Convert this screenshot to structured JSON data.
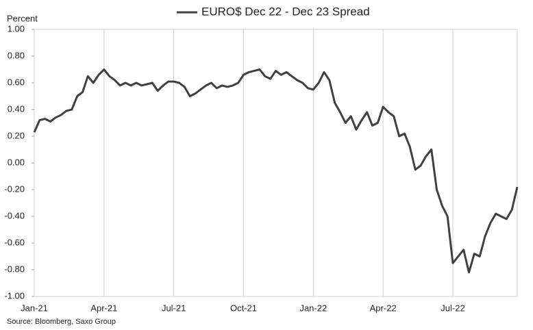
{
  "chart_data": {
    "type": "line",
    "y_label": "Percent",
    "source": "Source: Bloomberg, Saxo Group",
    "legend": "top",
    "grid": true,
    "categories": [
      "Jan-21",
      null,
      null,
      null,
      null,
      null,
      null,
      null,
      null,
      null,
      null,
      null,
      null,
      "Apr-21",
      null,
      null,
      null,
      null,
      null,
      null,
      null,
      null,
      null,
      null,
      null,
      null,
      "Jul-21",
      null,
      null,
      null,
      null,
      null,
      null,
      null,
      null,
      null,
      null,
      null,
      null,
      "Oct-21",
      null,
      null,
      null,
      null,
      null,
      null,
      null,
      null,
      null,
      null,
      null,
      null,
      "Jan-22",
      null,
      null,
      null,
      null,
      null,
      null,
      null,
      null,
      null,
      null,
      null,
      null,
      "Apr-22",
      null,
      null,
      null,
      null,
      null,
      null,
      null,
      null,
      null,
      null,
      null,
      null,
      "Jul-22",
      null,
      null,
      null,
      null,
      null,
      null,
      null,
      null,
      null,
      null,
      null,
      null
    ],
    "series": [
      {
        "name": "EURO$ Dec 22 - Dec 23 Spread",
        "color": "#404040",
        "values": [
          0.23,
          0.32,
          0.33,
          0.31,
          0.34,
          0.36,
          0.39,
          0.4,
          0.5,
          0.53,
          0.65,
          0.6,
          0.66,
          0.7,
          0.65,
          0.62,
          0.58,
          0.6,
          0.58,
          0.6,
          0.58,
          0.59,
          0.6,
          0.54,
          0.58,
          0.61,
          0.61,
          0.6,
          0.57,
          0.5,
          0.52,
          0.55,
          0.58,
          0.6,
          0.56,
          0.58,
          0.57,
          0.58,
          0.6,
          0.66,
          0.68,
          0.69,
          0.7,
          0.65,
          0.63,
          0.69,
          0.66,
          0.68,
          0.65,
          0.62,
          0.6,
          0.56,
          0.55,
          0.6,
          0.68,
          0.62,
          0.45,
          0.38,
          0.3,
          0.35,
          0.25,
          0.32,
          0.38,
          0.28,
          0.3,
          0.42,
          0.38,
          0.35,
          0.2,
          0.22,
          0.12,
          -0.05,
          -0.02,
          0.05,
          0.1,
          -0.2,
          -0.32,
          -0.4,
          -0.75,
          -0.7,
          -0.65,
          -0.82,
          -0.68,
          -0.7,
          -0.55,
          -0.45,
          -0.38,
          -0.4,
          -0.42,
          -0.35,
          -0.18
        ]
      }
    ],
    "ylim": [
      -1,
      1
    ],
    "yticks": [
      {
        "value": -1,
        "label": "-1.00"
      },
      {
        "value": -0.8,
        "label": "-0.80"
      },
      {
        "value": -0.6,
        "label": "-0.60"
      },
      {
        "value": -0.4,
        "label": "-0.40"
      },
      {
        "value": -0.2,
        "label": "-0.20"
      },
      {
        "value": 0,
        "label": "0.00"
      },
      {
        "value": 0.2,
        "label": "0.20"
      },
      {
        "value": 0.4,
        "label": "0.40"
      },
      {
        "value": 0.6,
        "label": "0.60"
      },
      {
        "value": 0.8,
        "label": "0.80"
      },
      {
        "value": 1,
        "label": "1.00"
      }
    ]
  }
}
